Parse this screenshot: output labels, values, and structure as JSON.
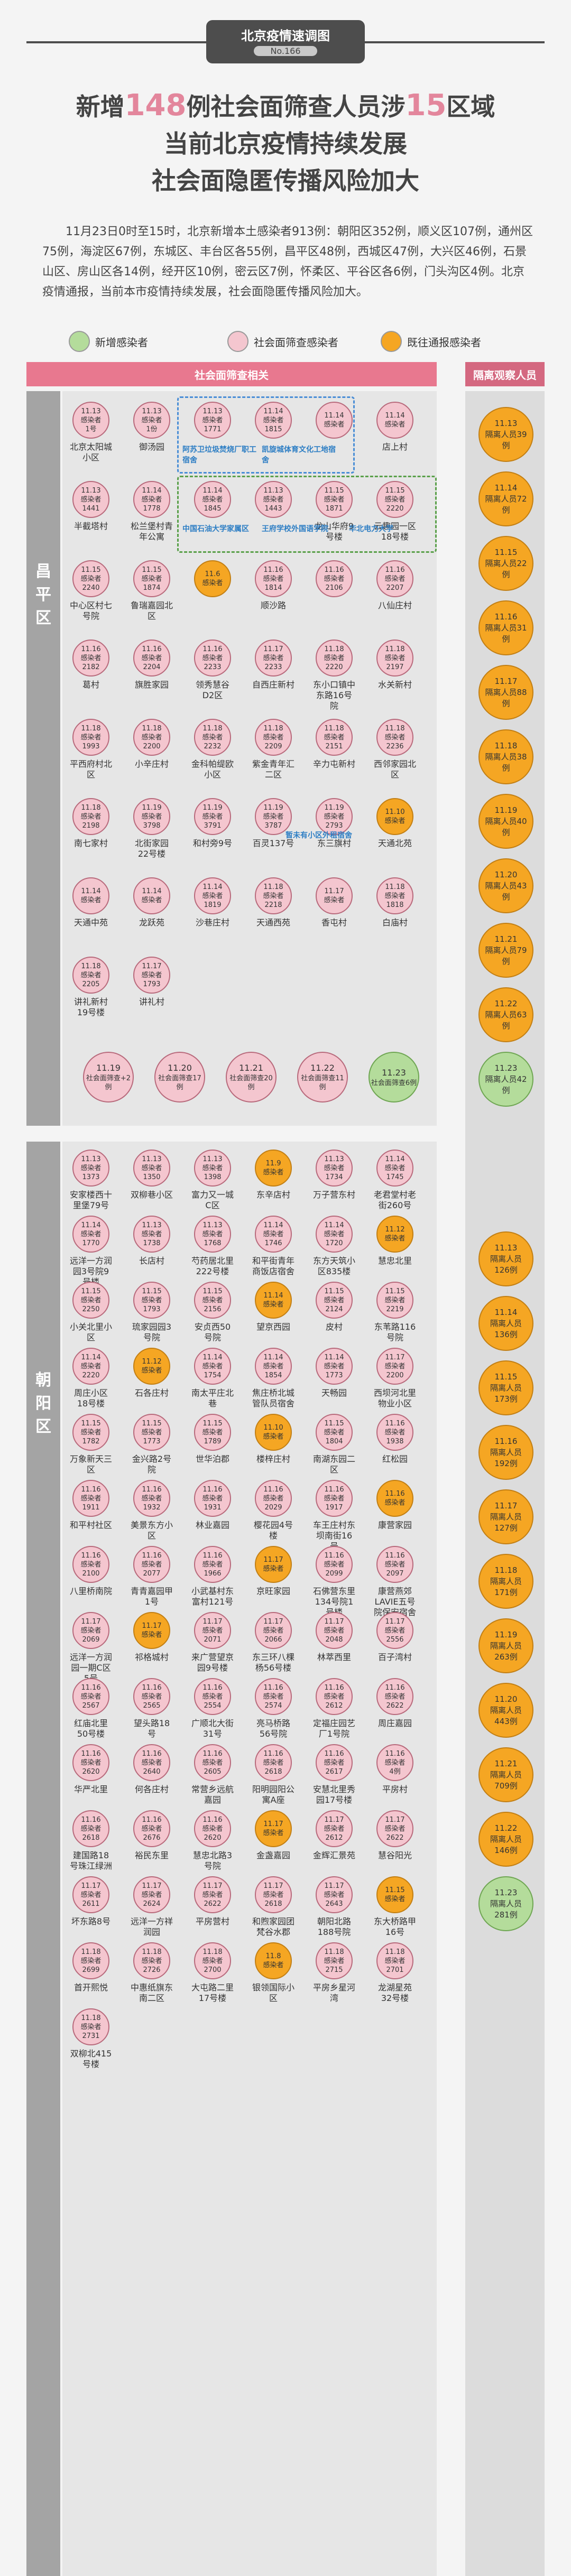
{
  "brand": {
    "title": "北京疫情速调图",
    "issue": "No.166"
  },
  "headline": {
    "l1a": "新增",
    "l1n": "148",
    "l1b": "例社会面筛查人员涉",
    "l1n2": "15",
    "l1c": "区域",
    "l2": "当前北京疫情持续发展",
    "l3": "社会面隐匿传播风险加大"
  },
  "summary": "11月23日0时至15时，北京新增本土感染者913例：朝阳区352例，顺义区107例，通州区75例，海淀区67例，东城区、丰台区各55例，昌平区48例，西城区47例，大兴区46例，石景山区、房山区各14例，经开区10例，密云区7例，怀柔区、平谷区各6例，门头沟区4例。北京疫情通报，当前本市疫情持续发展，社会面隐匿传播风险加大。",
  "legend": {
    "new": "新增感染者",
    "social": "社会面筛查感染者",
    "reported": "既往通报感染者",
    "colors": {
      "pink": "#f4c6cf",
      "orange": "#f5a623",
      "green": "#b4dc9b"
    }
  },
  "sections": {
    "social": "社会面筛查相关",
    "isolated": "隔离观察人员"
  },
  "districts": {
    "changping": "昌平区",
    "chaoyang": "朝阳区"
  },
  "label": {
    "infected": "感染者"
  },
  "changping": [
    {
      "d": "11.13",
      "n": "1号",
      "c": "北京太阳城小区"
    },
    {
      "d": "11.13",
      "n": "1份",
      "c": "御汤园"
    },
    {
      "d": "11.13",
      "n": "1771",
      "c": ""
    },
    {
      "d": "11.14",
      "n": "1815",
      "c": ""
    },
    {
      "d": "11.14",
      "n": "感染者",
      "c": ""
    },
    {
      "d": "11.14",
      "n": "感染者",
      "c": "店上村"
    },
    {
      "d": "11.13",
      "n": "1441",
      "c": "半截塔村"
    },
    {
      "d": "11.14",
      "n": "1778",
      "c": "松兰堡村青年公寓"
    },
    {
      "d": "11.14",
      "n": "1845",
      "c": ""
    },
    {
      "d": "11.13",
      "n": "1443",
      "c": ""
    },
    {
      "d": "11.15",
      "n": "1871",
      "c": "龙山华府9号楼"
    },
    {
      "d": "11.15",
      "n": "2220",
      "c": "云趣园一区18号楼"
    },
    {
      "d": "11.15",
      "n": "2240",
      "c": "中心区村七号院"
    },
    {
      "d": "11.15",
      "n": "1874",
      "c": "鲁瑞嘉园北区"
    },
    {
      "d": "11.6",
      "n": "感染者",
      "c": ""
    },
    {
      "d": "11.16",
      "n": "1814",
      "c": "顺沙路"
    },
    {
      "d": "11.16",
      "n": "2106",
      "c": ""
    },
    {
      "d": "11.16",
      "n": "2207",
      "c": "八仙庄村"
    },
    {
      "d": "11.16",
      "n": "2182",
      "c": "葛村"
    },
    {
      "d": "11.16",
      "n": "2204",
      "c": "旗胜家园"
    },
    {
      "d": "11.16",
      "n": "2233",
      "c": "领秀慧谷D2区"
    },
    {
      "d": "11.17",
      "n": "2233",
      "c": "自西庄新村"
    },
    {
      "d": "11.18",
      "n": "2220",
      "c": "东小口镇中东路16号院"
    },
    {
      "d": "11.18",
      "n": "2197",
      "c": "水关新村"
    },
    {
      "d": "11.18",
      "n": "1993",
      "c": "平西府村北区"
    },
    {
      "d": "11.18",
      "n": "2200",
      "c": "小辛庄村"
    },
    {
      "d": "11.18",
      "n": "2232",
      "c": "金科帕缇欧小区"
    },
    {
      "d": "11.18",
      "n": "2209",
      "c": "紫金青年汇二区"
    },
    {
      "d": "11.18",
      "n": "2151",
      "c": "辛力屯新村"
    },
    {
      "d": "11.18",
      "n": "2236",
      "c": "西邻家园北区"
    },
    {
      "d": "11.18",
      "n": "2198",
      "c": "南七家村"
    },
    {
      "d": "11.19",
      "n": "3798",
      "c": "北街家园22号楼"
    },
    {
      "d": "11.19",
      "n": "3791",
      "c": "和村旁9号"
    },
    {
      "d": "11.19",
      "n": "3787",
      "c": "百灵137号"
    },
    {
      "d": "11.19",
      "n": "2793",
      "c": "东三旗村"
    },
    {
      "d": "11.10",
      "n": "感染者",
      "c": "天通北苑"
    },
    {
      "d": "11.14",
      "n": "感染者",
      "c": "天通中苑"
    },
    {
      "d": "11.14",
      "n": "感染者",
      "c": "龙跃苑"
    },
    {
      "d": "11.14",
      "n": "1819",
      "c": "沙巷庄村"
    },
    {
      "d": "11.18",
      "n": "2218",
      "c": "天通西苑"
    },
    {
      "d": "11.17",
      "n": "感染者",
      "c": "香屯村"
    },
    {
      "d": "11.18",
      "n": "1818",
      "c": "白庙村"
    },
    {
      "d": "11.18",
      "n": "2205",
      "c": "讲礼新村19号楼"
    },
    {
      "d": "11.17",
      "n": "1793",
      "c": "讲礼村"
    }
  ],
  "changping_summary": [
    {
      "d": "11.19",
      "n": "社会面筛查+2例"
    },
    {
      "d": "11.20",
      "n": "社会面筛查17例"
    },
    {
      "d": "11.21",
      "n": "社会面筛查20例"
    },
    {
      "d": "11.22",
      "n": "社会面筛查11例"
    },
    {
      "d": "11.23",
      "n": "社会面筛查6例"
    }
  ],
  "changping_notes": [
    {
      "t": "阿苏卫垃圾焚烧厂职工宿舍"
    },
    {
      "t": "凯旋城体育文化工地宿舍"
    },
    {
      "t": "中国石油大学家属区"
    },
    {
      "t": "王府学校外国语学院"
    },
    {
      "t": "华北电力大学"
    },
    {
      "t": "暂未有小区外租宿舍"
    }
  ],
  "chaoyang": [
    {
      "d": "11.13",
      "n": "1373",
      "c": "安家楼西十里堡79号"
    },
    {
      "d": "11.13",
      "n": "1350",
      "c": "双柳巷小区"
    },
    {
      "d": "11.13",
      "n": "1398",
      "c": "富力又一城C区"
    },
    {
      "d": "11.9",
      "n": "感染者",
      "c": "东辛店村"
    },
    {
      "d": "11.13",
      "n": "1734",
      "c": "万子营东村"
    },
    {
      "d": "11.14",
      "n": "1745",
      "c": "老君堂村老街260号"
    },
    {
      "d": "11.14",
      "n": "1770",
      "c": "远洋一方润园3号院9号楼"
    },
    {
      "d": "11.13",
      "n": "1738",
      "c": "长店村"
    },
    {
      "d": "11.13",
      "n": "1768",
      "c": "芍药居北里222号楼"
    },
    {
      "d": "11.14",
      "n": "1746",
      "c": "和平街青年商饭店宿舍"
    },
    {
      "d": "11.14",
      "n": "1720",
      "c": "东方天筑小区835楼"
    },
    {
      "d": "11.12",
      "n": "感染者",
      "c": "慧忠北里"
    },
    {
      "d": "11.15",
      "n": "2250",
      "c": "小关北里小区"
    },
    {
      "d": "11.15",
      "n": "1793",
      "c": "琉家园园3号院"
    },
    {
      "d": "11.15",
      "n": "2156",
      "c": "安贞西50号院"
    },
    {
      "d": "11.14",
      "n": "感染者",
      "c": "望京西园"
    },
    {
      "d": "11.15",
      "n": "2124",
      "c": "皮村"
    },
    {
      "d": "11.15",
      "n": "2219",
      "c": "东苇路116号院"
    },
    {
      "d": "11.14",
      "n": "2220",
      "c": "周庄小区18号楼"
    },
    {
      "d": "11.12",
      "n": "感染者",
      "c": "石各庄村"
    },
    {
      "d": "11.14",
      "n": "1754",
      "c": "南太平庄北巷"
    },
    {
      "d": "11.14",
      "n": "1854",
      "c": "焦庄桥北城管队员宿舍"
    },
    {
      "d": "11.14",
      "n": "1773",
      "c": "天畅园"
    },
    {
      "d": "11.17",
      "n": "2200",
      "c": "西坝河北里物业小区"
    },
    {
      "d": "11.15",
      "n": "1782",
      "c": "万象新天三区"
    },
    {
      "d": "11.15",
      "n": "1773",
      "c": "金兴路2号院"
    },
    {
      "d": "11.15",
      "n": "1789",
      "c": "世华泊郡"
    },
    {
      "d": "11.10",
      "n": "感染者",
      "c": "楼梓庄村"
    },
    {
      "d": "11.15",
      "n": "1804",
      "c": "南湖东园二区"
    },
    {
      "d": "11.16",
      "n": "1938",
      "c": "红松园"
    },
    {
      "d": "11.16",
      "n": "1911",
      "c": "和平村社区"
    },
    {
      "d": "11.16",
      "n": "1932",
      "c": "美景东方小区"
    },
    {
      "d": "11.16",
      "n": "1931",
      "c": "林业嘉园"
    },
    {
      "d": "11.16",
      "n": "2029",
      "c": "樱花园4号楼"
    },
    {
      "d": "11.16",
      "n": "1917",
      "c": "车王庄村东坝南街16号"
    },
    {
      "d": "11.16",
      "n": "感染者",
      "c": "康营家园"
    },
    {
      "d": "11.16",
      "n": "2100",
      "c": "八里桥南院"
    },
    {
      "d": "11.16",
      "n": "2077",
      "c": "青青嘉园甲1号"
    },
    {
      "d": "11.16",
      "n": "1966",
      "c": "小武基村东富村121号"
    },
    {
      "d": "11.17",
      "n": "感染者",
      "c": "京旺家园"
    },
    {
      "d": "11.16",
      "n": "2099",
      "c": "石佛营东里134号院1号楼"
    },
    {
      "d": "11.16",
      "n": "2097",
      "c": "康营燕郊LAVIE五号院保安宿舍"
    },
    {
      "d": "11.17",
      "n": "2069",
      "c": "远洋一方润园一期C区5号"
    },
    {
      "d": "11.17",
      "n": "感染者",
      "c": "祁格城村"
    },
    {
      "d": "11.17",
      "n": "2071",
      "c": "来广营望京园9号楼"
    },
    {
      "d": "11.17",
      "n": "2066",
      "c": "东三环八棵杨56号楼"
    },
    {
      "d": "11.17",
      "n": "2048",
      "c": "林萃西里"
    },
    {
      "d": "11.17",
      "n": "2556",
      "c": "百子湾村"
    },
    {
      "d": "11.16",
      "n": "2567",
      "c": "红庙北里50号楼"
    },
    {
      "d": "11.16",
      "n": "2565",
      "c": "望头路18号"
    },
    {
      "d": "11.16",
      "n": "2554",
      "c": "广顺北大街31号"
    },
    {
      "d": "11.16",
      "n": "2574",
      "c": "亮马桥路56号院"
    },
    {
      "d": "11.16",
      "n": "2612",
      "c": "定福庄园艺厂1号院"
    },
    {
      "d": "11.16",
      "n": "2622",
      "c": "周庄嘉园"
    },
    {
      "d": "11.16",
      "n": "2620",
      "c": "华严北里"
    },
    {
      "d": "11.16",
      "n": "2640",
      "c": "何各庄村"
    },
    {
      "d": "11.16",
      "n": "2605",
      "c": "常营乡远航嘉园"
    },
    {
      "d": "11.16",
      "n": "2618",
      "c": "阳明园阳公寓A座"
    },
    {
      "d": "11.16",
      "n": "2617",
      "c": "安慧北里秀园17号楼"
    },
    {
      "d": "11.16",
      "n": "4例",
      "c": "平房村"
    },
    {
      "d": "11.16",
      "n": "2618",
      "c": "建国路18号珠江绿洲"
    },
    {
      "d": "11.16",
      "n": "2676",
      "c": "裕民东里"
    },
    {
      "d": "11.16",
      "n": "2620",
      "c": "慧忠北路3号院"
    },
    {
      "d": "11.17",
      "n": "感染者",
      "c": "金盏嘉园"
    },
    {
      "d": "11.17",
      "n": "2612",
      "c": "金辉汇景苑"
    },
    {
      "d": "11.17",
      "n": "2622",
      "c": "慧谷阳光"
    },
    {
      "d": "11.17",
      "n": "2611",
      "c": "坏东路8号"
    },
    {
      "d": "11.17",
      "n": "2624",
      "c": "远洋一方祥润园"
    },
    {
      "d": "11.17",
      "n": "2622",
      "c": "平房营村"
    },
    {
      "d": "11.17",
      "n": "2618",
      "c": "和煦家园团梵谷水郡"
    },
    {
      "d": "11.17",
      "n": "2643",
      "c": "朝阳北路188号院"
    },
    {
      "d": "11.15",
      "n": "感染者",
      "c": "东大桥路甲16号"
    },
    {
      "d": "11.18",
      "n": "2699",
      "c": "首开熙悦"
    },
    {
      "d": "11.18",
      "n": "2726",
      "c": "中惠纸旗东南二区"
    },
    {
      "d": "11.18",
      "n": "2700",
      "c": "大屯路二里17号楼"
    },
    {
      "d": "11.8",
      "n": "感染者",
      "c": "银领国际小区"
    },
    {
      "d": "11.18",
      "n": "2715",
      "c": "平房乡星河湾"
    },
    {
      "d": "11.18",
      "n": "2701",
      "c": "龙湖星苑32号楼"
    },
    {
      "d": "11.18",
      "n": "2731",
      "c": "双柳北415号楼"
    }
  ],
  "isolation_changping": [
    {
      "d": "11.13",
      "n": "隔离人员39例"
    },
    {
      "d": "11.14",
      "n": "隔离人员72例"
    },
    {
      "d": "11.15",
      "n": "隔离人员22例"
    },
    {
      "d": "11.16",
      "n": "隔离人员31例"
    },
    {
      "d": "11.17",
      "n": "隔离人员88例"
    },
    {
      "d": "11.18",
      "n": "隔离人员38例"
    },
    {
      "d": "11.19",
      "n": "隔离人员40例"
    },
    {
      "d": "11.20",
      "n": "隔离人员43例"
    },
    {
      "d": "11.21",
      "n": "隔离人员79例"
    },
    {
      "d": "11.22",
      "n": "隔离人员63例"
    },
    {
      "d": "11.23",
      "n": "隔离人员42例"
    }
  ],
  "isolation_chaoyang": [
    {
      "d": "11.13",
      "n": "隔离人员126例"
    },
    {
      "d": "11.14",
      "n": "隔离人员136例"
    },
    {
      "d": "11.15",
      "n": "隔离人员173例"
    },
    {
      "d": "11.16",
      "n": "隔离人员192例"
    },
    {
      "d": "11.17",
      "n": "隔离人员127例"
    },
    {
      "d": "11.18",
      "n": "隔离人员171例"
    },
    {
      "d": "11.19",
      "n": "隔离人员263例"
    },
    {
      "d": "11.20",
      "n": "隔离人员443例"
    },
    {
      "d": "11.21",
      "n": "隔离人员709例"
    },
    {
      "d": "11.22",
      "n": "隔离人员146例"
    },
    {
      "d": "11.23",
      "n": "隔离人员281例"
    }
  ]
}
